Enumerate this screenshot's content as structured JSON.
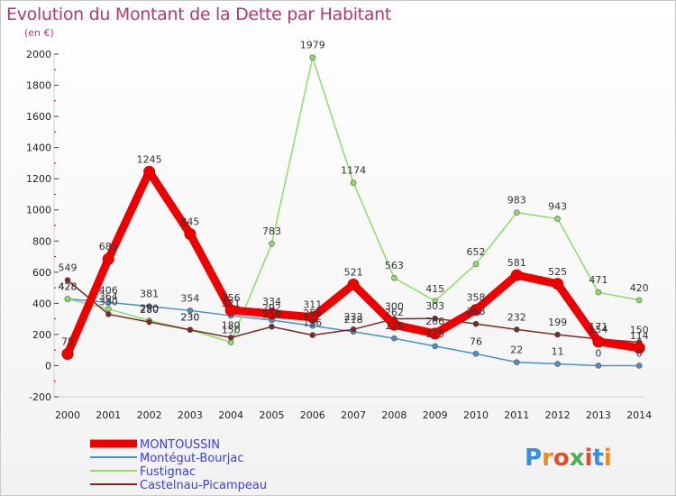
{
  "chart_data": {
    "type": "line",
    "title": "Evolution du Montant de la Dette par Habitant",
    "subtitle": "(en €)",
    "x": [
      "2000",
      "2001",
      "2002",
      "2003",
      "2004",
      "2005",
      "2006",
      "2007",
      "2008",
      "2009",
      "2010",
      "2011",
      "2012",
      "2013",
      "2014"
    ],
    "ylim": [
      -200,
      2000
    ],
    "yticks": [
      -200,
      0,
      200,
      400,
      600,
      800,
      1000,
      1200,
      1400,
      1600,
      1800,
      2000
    ],
    "grid": false,
    "legend": "bottom-left",
    "series": [
      {
        "name": "Montégut-Bourjac",
        "color": "#4a90c8",
        "width": 1.5,
        "values": [
          428,
          406,
          381,
          354,
          321,
          292,
          256,
          218,
          175,
          125,
          76,
          22,
          11,
          0,
          0
        ]
      },
      {
        "name": "Fustignac",
        "color": "#90dc6a",
        "width": 1.5,
        "values": [
          428,
          364,
          290,
          230,
          150,
          783,
          1979,
          1174,
          563,
          415,
          652,
          983,
          943,
          471,
          420
        ]
      },
      {
        "name": "Castelnau-Picampeau",
        "color": "#7a2a2a",
        "width": 1.5,
        "values": [
          549,
          330,
          280,
          230,
          180,
          250,
          196,
          233,
          300,
          303,
          268,
          232,
          199,
          171,
          150
        ]
      },
      {
        "name": "MONTOUSSIN",
        "color": "#ee0000",
        "width": 9,
        "values": [
          75,
          685,
          1245,
          845,
          356,
          334,
          311,
          521,
          262,
          206,
          358,
          581,
          525,
          154,
          114
        ]
      }
    ],
    "data_labels": [
      {
        "text": "549",
        "x": "2000",
        "y": 549
      },
      {
        "text": "428",
        "x": "2000",
        "y": 428
      },
      {
        "text": "428",
        "x": "2000",
        "y": 428
      },
      {
        "text": "75",
        "x": "2000",
        "y": 75
      },
      {
        "text": "685",
        "x": "2001",
        "y": 685
      },
      {
        "text": "406",
        "x": "2001",
        "y": 406
      },
      {
        "text": "364",
        "x": "2001",
        "y": 364
      },
      {
        "text": "330",
        "x": "2001",
        "y": 330
      },
      {
        "text": "1245",
        "x": "2002",
        "y": 1245
      },
      {
        "text": "381",
        "x": "2002",
        "y": 381
      },
      {
        "text": "290",
        "x": "2002",
        "y": 290
      },
      {
        "text": "280",
        "x": "2002",
        "y": 280
      },
      {
        "text": "845",
        "x": "2003",
        "y": 845
      },
      {
        "text": "354",
        "x": "2003",
        "y": 354
      },
      {
        "text": "230",
        "x": "2003",
        "y": 230
      },
      {
        "text": "230",
        "x": "2003",
        "y": 230
      },
      {
        "text": "356",
        "x": "2004",
        "y": 356
      },
      {
        "text": "321",
        "x": "2004",
        "y": 321
      },
      {
        "text": "180",
        "x": "2004",
        "y": 180
      },
      {
        "text": "150",
        "x": "2004",
        "y": 150
      },
      {
        "text": "783",
        "x": "2005",
        "y": 783
      },
      {
        "text": "334",
        "x": "2005",
        "y": 334
      },
      {
        "text": "292",
        "x": "2005",
        "y": 292
      },
      {
        "text": "250",
        "x": "2005",
        "y": 250
      },
      {
        "text": "1979",
        "x": "2006",
        "y": 1979
      },
      {
        "text": "311",
        "x": "2006",
        "y": 311
      },
      {
        "text": "256",
        "x": "2006",
        "y": 256
      },
      {
        "text": "196",
        "x": "2006",
        "y": 196
      },
      {
        "text": "1174",
        "x": "2007",
        "y": 1174
      },
      {
        "text": "521",
        "x": "2007",
        "y": 521
      },
      {
        "text": "233",
        "x": "2007",
        "y": 233
      },
      {
        "text": "218",
        "x": "2007",
        "y": 218
      },
      {
        "text": "563",
        "x": "2008",
        "y": 563
      },
      {
        "text": "300",
        "x": "2008",
        "y": 300
      },
      {
        "text": "262",
        "x": "2008",
        "y": 262
      },
      {
        "text": "175",
        "x": "2008",
        "y": 175
      },
      {
        "text": "415",
        "x": "2009",
        "y": 415
      },
      {
        "text": "303",
        "x": "2009",
        "y": 303
      },
      {
        "text": "206",
        "x": "2009",
        "y": 206
      },
      {
        "text": "125",
        "x": "2009",
        "y": 125
      },
      {
        "text": "652",
        "x": "2010",
        "y": 652
      },
      {
        "text": "358",
        "x": "2010",
        "y": 358
      },
      {
        "text": "268",
        "x": "2010",
        "y": 268
      },
      {
        "text": "76",
        "x": "2010",
        "y": 76
      },
      {
        "text": "983",
        "x": "2011",
        "y": 983
      },
      {
        "text": "581",
        "x": "2011",
        "y": 581
      },
      {
        "text": "232",
        "x": "2011",
        "y": 232
      },
      {
        "text": "22",
        "x": "2011",
        "y": 22
      },
      {
        "text": "943",
        "x": "2012",
        "y": 943
      },
      {
        "text": "525",
        "x": "2012",
        "y": 525
      },
      {
        "text": "199",
        "x": "2012",
        "y": 199
      },
      {
        "text": "11",
        "x": "2012",
        "y": 11
      },
      {
        "text": "471",
        "x": "2013",
        "y": 471
      },
      {
        "text": "171",
        "x": "2013",
        "y": 171
      },
      {
        "text": "154",
        "x": "2013",
        "y": 154
      },
      {
        "text": "0",
        "x": "2013",
        "y": 0
      },
      {
        "text": "420",
        "x": "2014",
        "y": 420
      },
      {
        "text": "150",
        "x": "2014",
        "y": 150
      },
      {
        "text": "114",
        "x": "2014",
        "y": 114
      },
      {
        "text": "0",
        "x": "2014",
        "y": 0
      }
    ]
  },
  "legend": [
    {
      "name": "MONTOUSSIN",
      "color": "#ee0000",
      "text_color": "#3a3aff"
    },
    {
      "name": "Montégut-Bourjac",
      "color": "#4a90c8",
      "text_color": "#3a3aff"
    },
    {
      "name": "Fustignac",
      "color": "#90dc6a",
      "text_color": "#3a3aff"
    },
    {
      "name": "Castelnau-Picampeau",
      "color": "#7a2a2a",
      "text_color": "#3a3aff"
    }
  ],
  "logo": {
    "text": "Proxiti"
  }
}
